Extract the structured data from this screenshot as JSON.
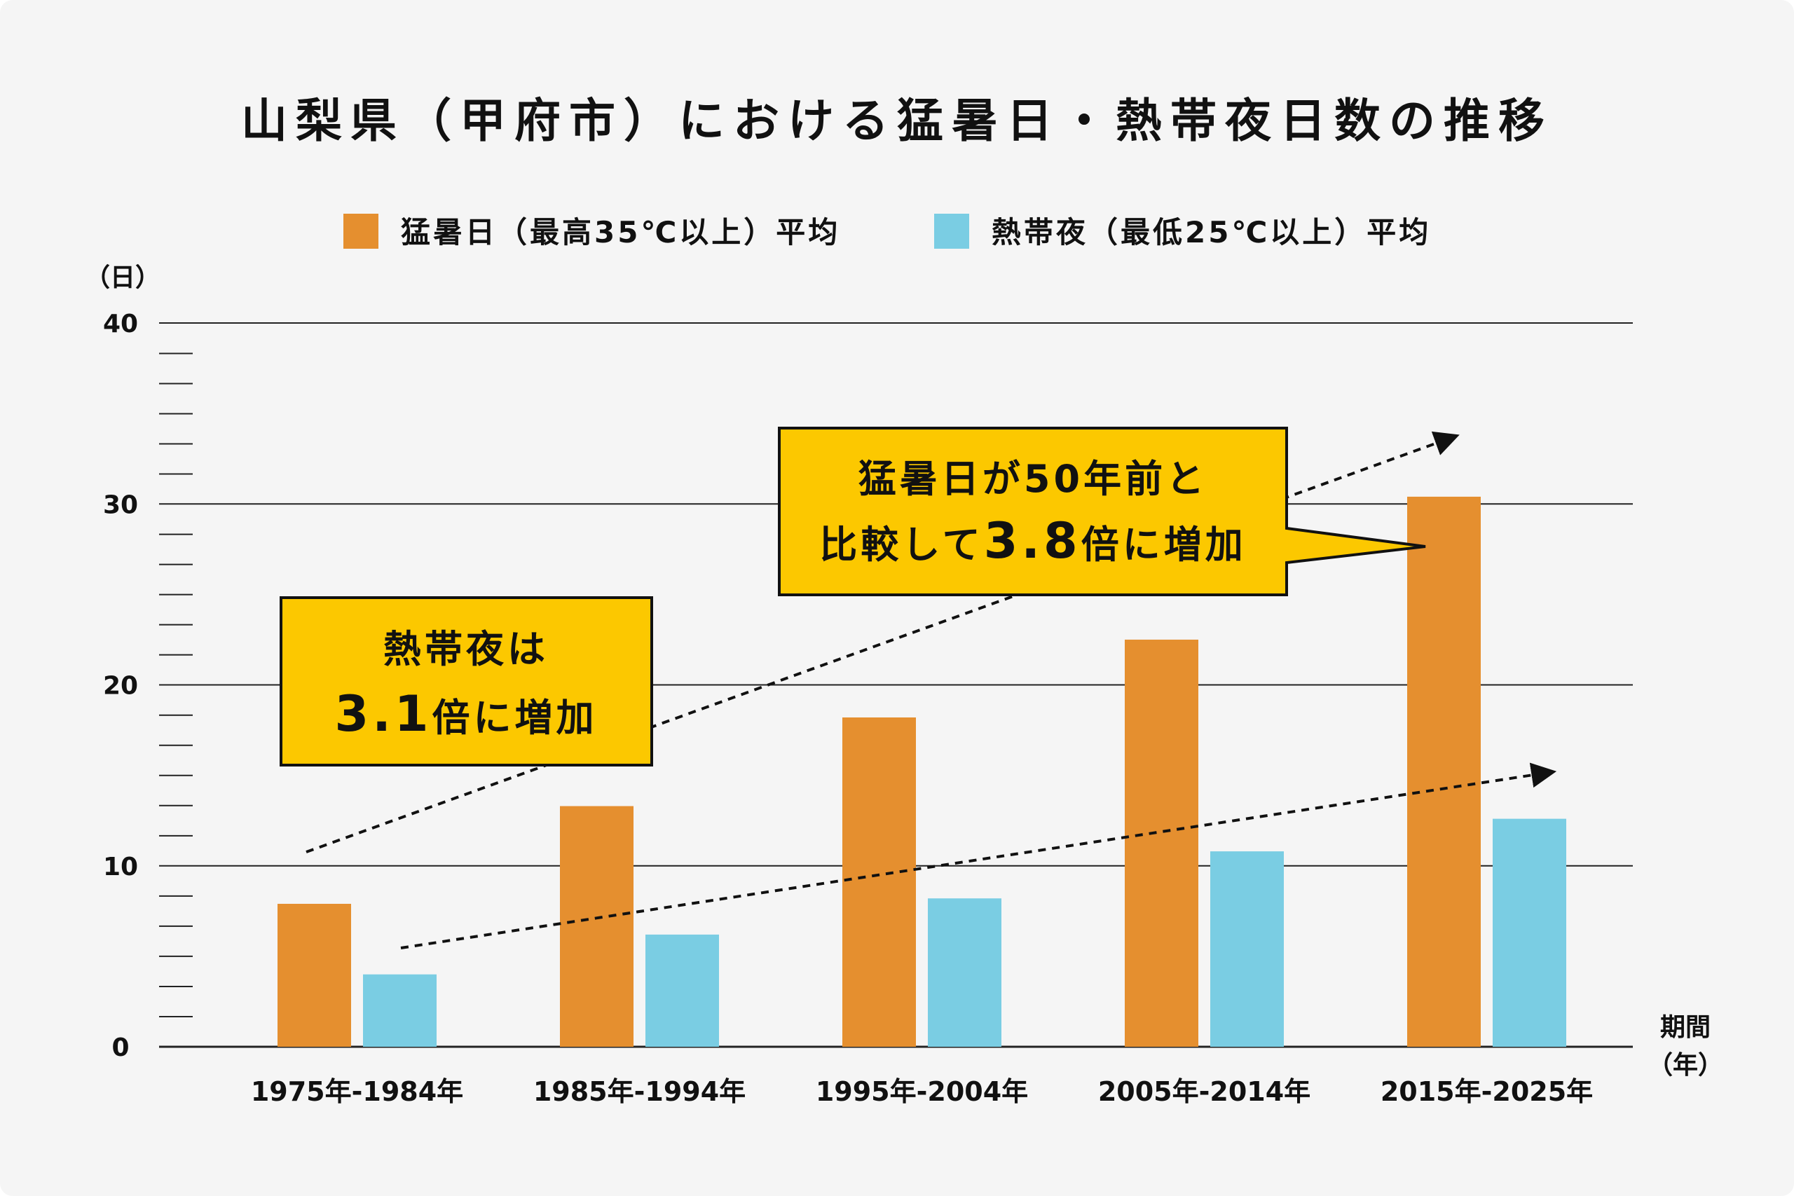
{
  "chart_data": {
    "type": "bar",
    "title": "山梨県（甲府市）における猛暑日・熱帯夜日数の推移",
    "ylabel": "（日）",
    "xlabel_line1": "期間",
    "xlabel_line2": "（年）",
    "ylim": [
      0,
      40
    ],
    "yticks": [
      0,
      10,
      20,
      30,
      40
    ],
    "minor_tick_step": 1.666,
    "grid": true,
    "legend_position": "top-center",
    "categories": [
      "1975年-1984年",
      "1985年-1994年",
      "1995年-2004年",
      "2005年-2014年",
      "2015年-2025年"
    ],
    "series": [
      {
        "name": "猛暑日（最高35℃以上）平均",
        "color": "#e58f2f",
        "values": [
          7.9,
          13.3,
          18.2,
          22.5,
          30.4
        ]
      },
      {
        "name": "熱帯夜（最低25℃以上）平均",
        "color": "#7acde3",
        "values": [
          4.0,
          6.2,
          8.2,
          10.8,
          12.6
        ]
      }
    ],
    "annotations": [
      {
        "id": "tropical",
        "lines": [
          "熱帯夜は",
          "3.1倍に増加"
        ],
        "highlight": "3.1"
      },
      {
        "id": "hot",
        "lines": [
          "猛暑日が50年前と",
          "比較して3.8倍に増加"
        ],
        "highlight": "3.8"
      }
    ]
  },
  "colors": {
    "background": "#f5f5f5",
    "callout_fill": "#fcc800",
    "axis": "#222222"
  }
}
